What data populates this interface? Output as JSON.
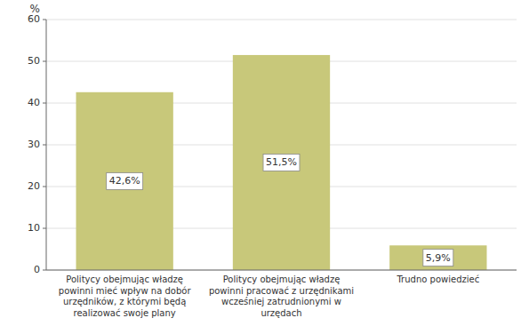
{
  "chart_data": {
    "type": "bar",
    "categories": [
      "Politycy obejmując władzę\npowinni mieć wpływ na dobór\nurzędników, z którymi będą\nrealizować swoje plany",
      "Politycy obejmując władzę\npowinni pracować z urzędnikami\nwcześniej zatrudnionymi w\nurzędach",
      "Trudno powiedzieć"
    ],
    "values": [
      42.6,
      51.5,
      5.9
    ],
    "value_labels": [
      "42,6%",
      "51,5%",
      "5,9%"
    ],
    "data_labels": true,
    "color": "#C8C87A",
    "ylabel": "%",
    "ylim": [
      0,
      60
    ],
    "yticks": [
      0,
      10,
      20,
      30,
      40,
      50,
      60
    ],
    "grid": true
  }
}
